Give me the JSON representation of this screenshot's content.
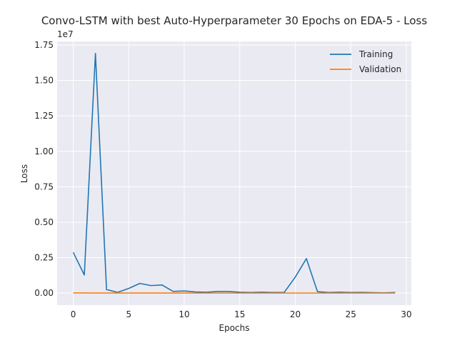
{
  "chart_data": {
    "type": "line",
    "title": "Convo-LSTM with best Auto-Hyperparameter 30 Epochs on EDA-5 - Loss",
    "xlabel": "Epochs",
    "ylabel": "Loss",
    "y_offset_label": "1e7",
    "xlim": [
      -1.45,
      30.45
    ],
    "ylim": [
      -0.085,
      1.775
    ],
    "x_ticks": [
      0,
      5,
      10,
      15,
      20,
      25,
      30
    ],
    "y_ticks": [
      0.0,
      0.25,
      0.5,
      0.75,
      1.0,
      1.25,
      1.5,
      1.75
    ],
    "y_tick_labels": [
      "0.00",
      "0.25",
      "0.50",
      "0.75",
      "1.00",
      "1.25",
      "1.50",
      "1.75"
    ],
    "grid": true,
    "legend_position": "top-right",
    "colors": {
      "background": "#eaeaf2",
      "grid": "#ffffff",
      "training": "#1f77b4",
      "validation": "#ff7f0e"
    },
    "x": [
      0,
      1,
      2,
      3,
      4,
      5,
      6,
      7,
      8,
      9,
      10,
      11,
      12,
      13,
      14,
      15,
      16,
      17,
      18,
      19,
      20,
      21,
      22,
      23,
      24,
      25,
      26,
      27,
      28,
      29
    ],
    "series": [
      {
        "name": "Training",
        "color": "#1f77b4",
        "values": [
          0.287,
          0.128,
          1.69,
          0.025,
          0.005,
          0.033,
          0.068,
          0.053,
          0.057,
          0.012,
          0.015,
          0.008,
          0.006,
          0.011,
          0.011,
          0.006,
          0.004,
          0.006,
          0.004,
          0.004,
          0.113,
          0.243,
          0.01,
          0.004,
          0.006,
          0.004,
          0.005,
          0.003,
          0.002,
          0.004
        ]
      },
      {
        "name": "Validation",
        "color": "#ff7f0e",
        "values": [
          0.001,
          0.001,
          0.0005,
          0.0003,
          0.0002,
          0.0002,
          0.0002,
          0.0002,
          0.0002,
          0.0002,
          0.0002,
          0.0001,
          0.0001,
          0.0001,
          0.0001,
          0.0001,
          0.0001,
          0.0001,
          0.0001,
          0.0001,
          0.0001,
          0.0001,
          0.0001,
          0.0001,
          0.0001,
          0.0001,
          0.0001,
          0.0001,
          0.0001,
          0.0001
        ]
      }
    ]
  }
}
